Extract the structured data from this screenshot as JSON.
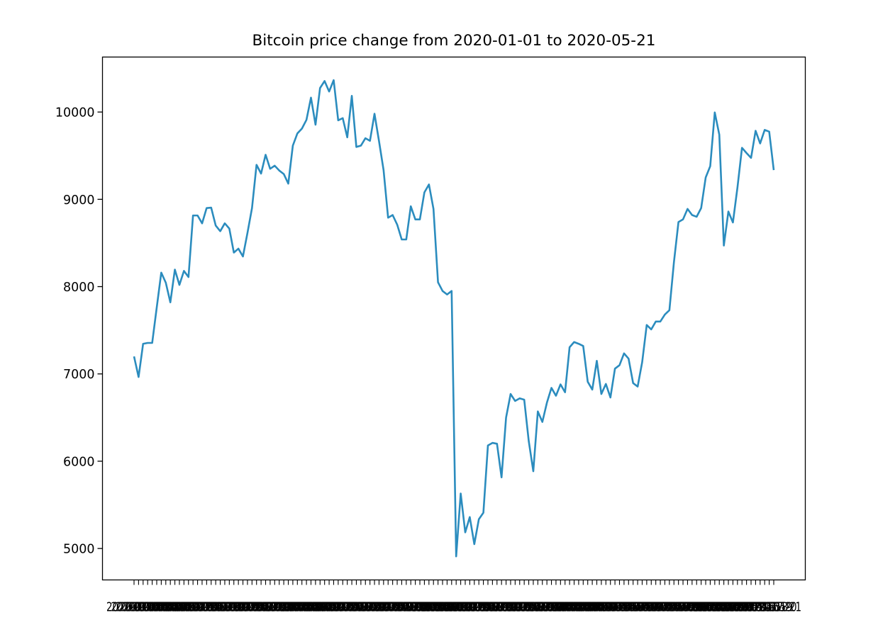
{
  "chart_data": {
    "type": "line",
    "title": "Bitcoin price change from 2020-01-01 to 2020-05-21",
    "xlabel": "",
    "ylabel": "",
    "x_start": "2020-01-01",
    "x_end": "2020-05-21",
    "yticks": [
      5000,
      6000,
      7000,
      8000,
      9000,
      10000
    ],
    "ylim": [
      4640,
      10630
    ],
    "grid": false,
    "legend": false,
    "series": [
      {
        "color": "#2b8cbe",
        "values": [
          7200,
          6965,
          7345,
          7355,
          7355,
          7760,
          8160,
          8045,
          7820,
          8195,
          8020,
          8180,
          8110,
          8815,
          8815,
          8725,
          8900,
          8905,
          8700,
          8635,
          8725,
          8665,
          8390,
          8435,
          8345,
          8615,
          8900,
          9395,
          9295,
          9510,
          9350,
          9385,
          9330,
          9290,
          9180,
          9615,
          9755,
          9810,
          9910,
          10165,
          9855,
          10275,
          10355,
          10235,
          10365,
          9905,
          9930,
          9710,
          10185,
          9600,
          9615,
          9700,
          9670,
          9980,
          9665,
          9335,
          8790,
          8820,
          8710,
          8540,
          8540,
          8920,
          8770,
          8770,
          9080,
          9170,
          8890,
          8050,
          7950,
          7910,
          7950,
          4910,
          5630,
          5185,
          5360,
          5050,
          5335,
          5410,
          6180,
          6210,
          6200,
          5815,
          6500,
          6770,
          6690,
          6720,
          6705,
          6230,
          5885,
          6570,
          6450,
          6670,
          6840,
          6750,
          6880,
          6790,
          7305,
          7365,
          7345,
          7320,
          6910,
          6820,
          7150,
          6770,
          6885,
          6730,
          7060,
          7100,
          7235,
          7175,
          6895,
          6855,
          7135,
          7560,
          7510,
          7600,
          7600,
          7680,
          7730,
          8280,
          8740,
          8770,
          8890,
          8820,
          8800,
          8900,
          9250,
          9380,
          9995,
          9740,
          8470,
          8860,
          8735,
          9135,
          9590,
          9530,
          9475,
          9785,
          9640,
          9795,
          9775,
          9335
        ]
      }
    ]
  }
}
